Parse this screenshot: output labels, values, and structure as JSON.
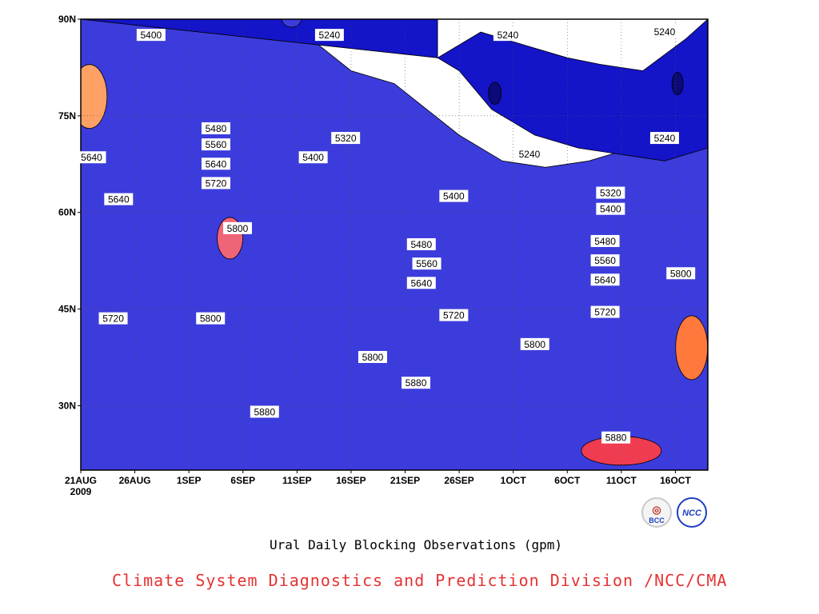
{
  "chart_data": {
    "type": "heatmap",
    "title": "Ural Daily Blocking Observations (gpm)",
    "credit": "Climate System Diagnostics and Prediction Division /NCC/CMA",
    "x_tick_labels": [
      "21AUG",
      "26AUG",
      "1SEP",
      "6SEP",
      "11SEP",
      "16SEP",
      "21SEP",
      "26SEP",
      "1OCT",
      "6OCT",
      "11OCT",
      "16OCT"
    ],
    "x_year_label": "2009",
    "y_tick_labels": [
      "30N",
      "45N",
      "60N",
      "75N",
      "90N"
    ],
    "y_ticks": [
      30,
      45,
      60,
      75,
      90
    ],
    "ylim": [
      20,
      90
    ],
    "xlim_days": [
      0,
      58
    ],
    "contour_levels": [
      5240,
      5320,
      5400,
      5480,
      5560,
      5640,
      5720,
      5800,
      5880
    ],
    "fill_colors": {
      "below_5240": "#1414c8",
      "5240_5320": "#3c3cdc",
      "5320_5400": "#5a8ce6",
      "5400_5480": "#64c8ff",
      "5480_5560": "#ffff80",
      "5560_5640": "#ffe0a0",
      "5640_5720": "#ffa064",
      "5720_5800": "#ff783c",
      "5800_5880": "#f06478",
      "above_5880": "#f03c50"
    },
    "contour_labels": [
      {
        "text": "5400",
        "day": 6.5,
        "lat": 87.5
      },
      {
        "text": "5240",
        "day": 23,
        "lat": 87.5
      },
      {
        "text": "5240",
        "day": 39.5,
        "lat": 87.5
      },
      {
        "text": "5240",
        "day": 54,
        "lat": 88
      },
      {
        "text": "5480",
        "day": 12.5,
        "lat": 73
      },
      {
        "text": "5560",
        "day": 12.5,
        "lat": 70.5
      },
      {
        "text": "5640",
        "day": 12.5,
        "lat": 67.5
      },
      {
        "text": "5720",
        "day": 12.5,
        "lat": 64.5
      },
      {
        "text": "5320",
        "day": 24.5,
        "lat": 71.5
      },
      {
        "text": "5400",
        "day": 21.5,
        "lat": 68.5
      },
      {
        "text": "5240",
        "day": 41.5,
        "lat": 69
      },
      {
        "text": "5240",
        "day": 54,
        "lat": 71.5
      },
      {
        "text": "5640",
        "day": 1,
        "lat": 68.5
      },
      {
        "text": "5640",
        "day": 3.5,
        "lat": 62
      },
      {
        "text": "5800",
        "day": 14.5,
        "lat": 57.5
      },
      {
        "text": "5400",
        "day": 34.5,
        "lat": 62.5
      },
      {
        "text": "5480",
        "day": 31.5,
        "lat": 55
      },
      {
        "text": "5560",
        "day": 32,
        "lat": 52
      },
      {
        "text": "5640",
        "day": 31.5,
        "lat": 49
      },
      {
        "text": "5320",
        "day": 49,
        "lat": 63
      },
      {
        "text": "5400",
        "day": 49,
        "lat": 60.5
      },
      {
        "text": "5480",
        "day": 48.5,
        "lat": 55.5
      },
      {
        "text": "5560",
        "day": 48.5,
        "lat": 52.5
      },
      {
        "text": "5640",
        "day": 48.5,
        "lat": 49.5
      },
      {
        "text": "5720",
        "day": 3,
        "lat": 43.5
      },
      {
        "text": "5800",
        "day": 12,
        "lat": 43.5
      },
      {
        "text": "5720",
        "day": 34.5,
        "lat": 44
      },
      {
        "text": "5720",
        "day": 48.5,
        "lat": 44.5
      },
      {
        "text": "5800",
        "day": 55.5,
        "lat": 50.5
      },
      {
        "text": "5800",
        "day": 42,
        "lat": 39.5
      },
      {
        "text": "5800",
        "day": 27,
        "lat": 37.5
      },
      {
        "text": "5880",
        "day": 31,
        "lat": 33.5
      },
      {
        "text": "5880",
        "day": 17,
        "lat": 29
      },
      {
        "text": "5880",
        "day": 49.5,
        "lat": 25
      }
    ]
  }
}
